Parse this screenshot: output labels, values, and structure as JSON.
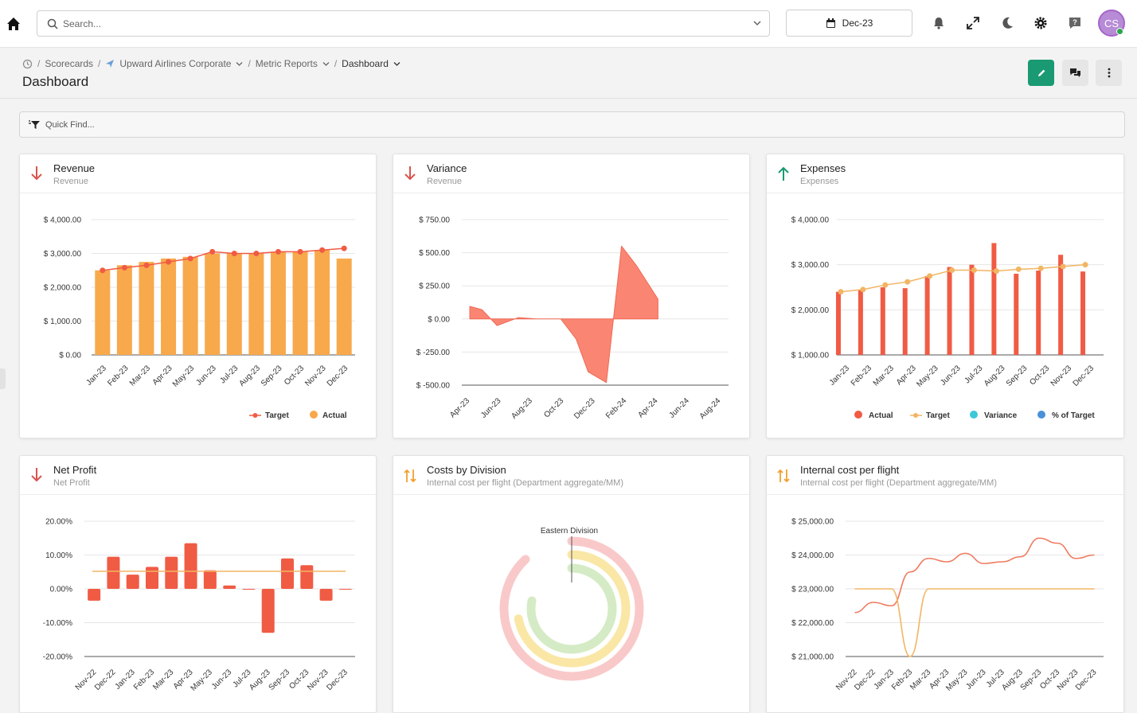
{
  "search": {
    "placeholder": "Search..."
  },
  "date": {
    "label": "Dec-23"
  },
  "user": {
    "initials": "CS"
  },
  "breadcrumb": {
    "items": [
      "Scorecards",
      "Upward Airlines Corporate",
      "Metric Reports",
      "Dashboard"
    ]
  },
  "page": {
    "title": "Dashboard"
  },
  "quickfind": {
    "placeholder": "Quick Find..."
  },
  "colors": {
    "accent": "#199a72",
    "down": "#d9534f",
    "up": "#199a72",
    "neutral": "#f0a030",
    "orange": "#f8a94c",
    "red": "#f05b44",
    "lightOrange": "#f2b563"
  },
  "panels": [
    {
      "title": "Revenue",
      "subtitle": "Revenue",
      "trend": "down",
      "chart_data": {
        "type": "bar",
        "categories": [
          "Jan-23",
          "Feb-23",
          "Mar-23",
          "Apr-23",
          "May-23",
          "Jun-23",
          "Jul-23",
          "Aug-23",
          "Sep-23",
          "Oct-23",
          "Nov-23",
          "Dec-23"
        ],
        "yticks": [
          "$ 4,000.00",
          "$ 3,000.00",
          "$ 2,000.00",
          "$ 1,000.00",
          "$ 0.00"
        ],
        "ylim": [
          0,
          4000
        ],
        "series": [
          {
            "name": "Actual",
            "type": "bar",
            "values": [
              2500,
              2650,
              2750,
              2850,
              2900,
              3000,
              3000,
              3000,
              3050,
              3050,
              3100,
              2850
            ]
          },
          {
            "name": "Target",
            "type": "line",
            "values": [
              2500,
              2580,
              2650,
              2750,
              2850,
              3050,
              3000,
              3000,
              3050,
              3050,
              3100,
              3150
            ]
          }
        ],
        "legend": [
          "Target",
          "Actual"
        ]
      }
    },
    {
      "title": "Variance",
      "subtitle": "Revenue",
      "trend": "down",
      "chart_data": {
        "type": "area",
        "categories": [
          "Apr-23",
          "Jun-23",
          "Aug-23",
          "Oct-23",
          "Dec-23",
          "Feb-24",
          "Apr-24",
          "Jun-24",
          "Aug-24"
        ],
        "yticks": [
          "$ 750.00",
          "$ 500.00",
          "$ 250.00",
          "$ 0.00",
          "$ -250.00",
          "$ -500.00"
        ],
        "ylim": [
          -500,
          750
        ],
        "x": [
          0,
          0.4,
          0.9,
          1.6,
          2.2,
          3,
          3.5,
          3.9,
          4.5,
          5,
          5.5,
          6.2
        ],
        "values": [
          95,
          70,
          -50,
          10,
          0,
          0,
          -150,
          -400,
          -480,
          550,
          400,
          150
        ]
      }
    },
    {
      "title": "Expenses",
      "subtitle": "Expenses",
      "trend": "up",
      "chart_data": {
        "type": "bar",
        "categories": [
          "Jan-23",
          "Feb-23",
          "Mar-23",
          "Apr-23",
          "May-23",
          "Jun-23",
          "Jul-23",
          "Aug-23",
          "Sep-23",
          "Oct-23",
          "Nov-23",
          "Dec-23"
        ],
        "yticks": [
          "$ 4,000.00",
          "$ 3,000.00",
          "$ 2,000.00",
          "$ 1,000.00"
        ],
        "ylim": [
          1000,
          4000
        ],
        "bars_per_month": [
          2400,
          2450,
          2500,
          2480,
          2750,
          2950,
          3000,
          3480,
          2800,
          2870,
          3220,
          2850
        ],
        "target": [
          2400,
          2450,
          2550,
          2620,
          2750,
          2880,
          2880,
          2860,
          2900,
          2920,
          2960,
          3000
        ],
        "legend": [
          "Actual",
          "Target",
          "Variance",
          "% of Target"
        ]
      }
    },
    {
      "title": "Net Profit",
      "subtitle": "Net Profit",
      "trend": "down",
      "chart_data": {
        "type": "bar",
        "categories": [
          "Nov-22",
          "Dec-22",
          "Jan-23",
          "Feb-23",
          "Mar-23",
          "Apr-23",
          "May-23",
          "Jun-23",
          "Jul-23",
          "Aug-23",
          "Sep-23",
          "Oct-23",
          "Nov-23",
          "Dec-23"
        ],
        "yticks": [
          "20.00%",
          "10.00%",
          "0.00%",
          "-10.00%",
          "-20.00%"
        ],
        "ylim": [
          -20,
          20
        ],
        "values": [
          -3.5,
          9.5,
          4.2,
          6.5,
          9.5,
          13.5,
          5.5,
          1,
          0,
          -13,
          9,
          7,
          -3.5,
          -0.2
        ],
        "target": 5.2
      }
    },
    {
      "title": "Costs by Division",
      "subtitle": "Internal cost per flight (Department aggregate/MM)",
      "trend": "neutral",
      "chart_data": {
        "type": "radial",
        "label": "Eastern Division",
        "rings": [
          {
            "color": "#f9c9c9",
            "fraction": 0.88
          },
          {
            "color": "#fae7a6",
            "fraction": 0.72
          },
          {
            "color": "#d5ebc6",
            "fraction": 0.78
          }
        ]
      }
    },
    {
      "title": "Internal cost per flight",
      "subtitle": "Internal cost per flight (Department aggregate/MM)",
      "trend": "neutral",
      "chart_data": {
        "type": "line",
        "categories": [
          "Nov-22",
          "Dec-22",
          "Jan-23",
          "Feb-23",
          "Mar-23",
          "Apr-23",
          "May-23",
          "Jun-23",
          "Jul-23",
          "Aug-23",
          "Sep-23",
          "Oct-23",
          "Nov-23",
          "Dec-23"
        ],
        "yticks": [
          "$ 25,000.00",
          "$ 24,000.00",
          "$ 23,000.00",
          "$ 22,000.00",
          "$ 21,000.00"
        ],
        "ylim": [
          21000,
          25000
        ],
        "series": [
          {
            "type": "line",
            "values": [
              22300,
              22600,
              22500,
              23500,
              23900,
              23800,
              24050,
              23750,
              23800,
              23950,
              24500,
              24350,
              23900,
              24000
            ]
          },
          {
            "type": "line",
            "values": [
              23000,
              23000,
              23000,
              21000,
              23000,
              23000,
              23000,
              23000,
              23000,
              23000,
              23000,
              23000,
              23000,
              23000
            ]
          }
        ]
      }
    }
  ]
}
